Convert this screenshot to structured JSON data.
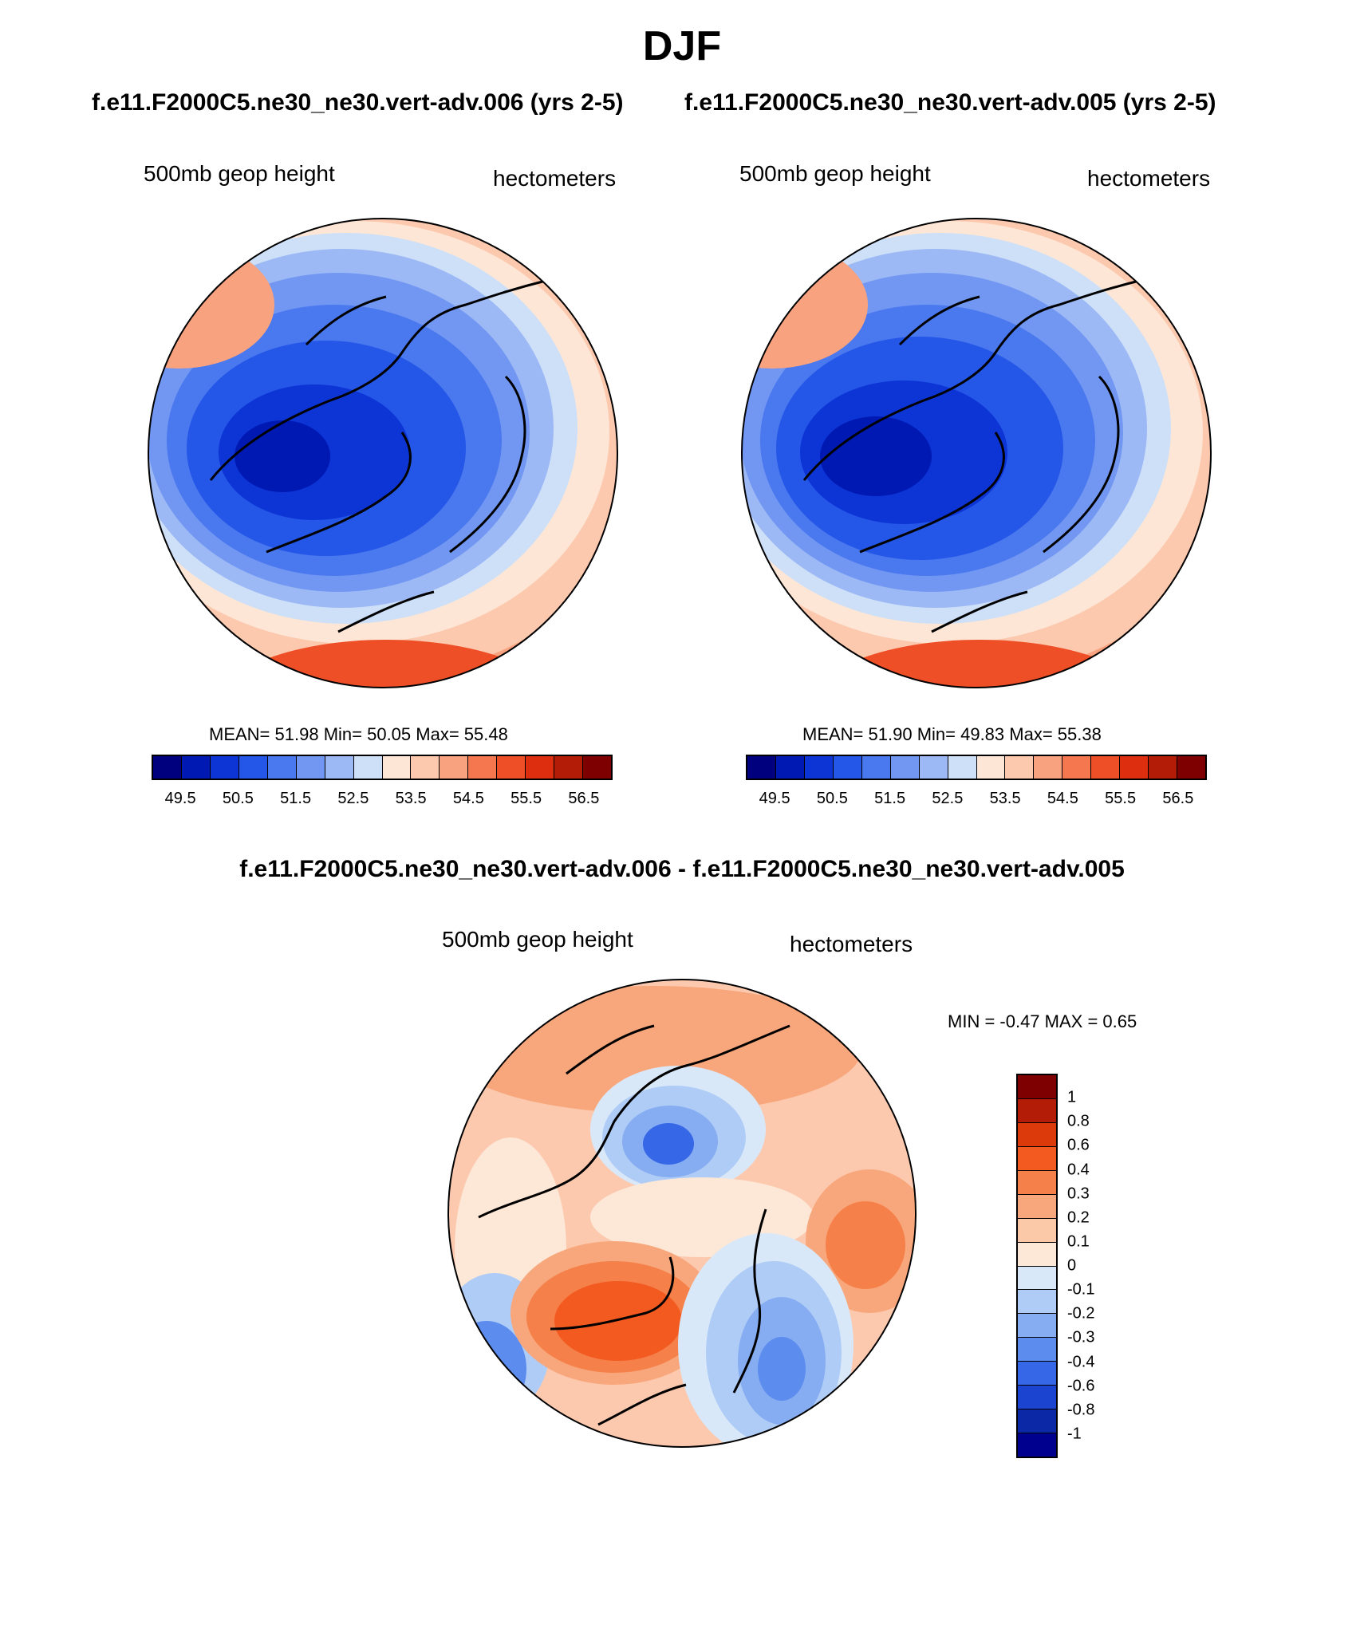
{
  "season": "DJF",
  "case_titles": {
    "left": "f.e11.F2000C5.ne30_ne30.vert-adv.006 (yrs 2-5)",
    "right": "f.e11.F2000C5.ne30_ne30.vert-adv.005 (yrs 2-5)",
    "difference": "f.e11.F2000C5.ne30_ne30.vert-adv.006 - f.e11.F2000C5.ne30_ne30.vert-adv.005"
  },
  "panels": {
    "left": {
      "variable": "500mb geop height",
      "units": "hectometers",
      "stats": "MEAN=  51.98  Min=  50.05  Max=  55.48"
    },
    "right": {
      "variable": "500mb geop height",
      "units": "hectometers",
      "stats": "MEAN=  51.90  Min=  49.83  Max=  55.38"
    },
    "diff": {
      "variable": "500mb geop height",
      "units": "hectometers",
      "stats": "MIN =  -0.47 MAX =   0.65"
    }
  },
  "colorbar_abs": {
    "colors": [
      "#00007f",
      "#0019b3",
      "#0d35d6",
      "#2456e8",
      "#4a78ee",
      "#7197f2",
      "#9cb8f5",
      "#cde0f8",
      "#fde6d6",
      "#fcc9ae",
      "#f9a27f",
      "#f5774f",
      "#ef4f27",
      "#dd2f10",
      "#b31d08",
      "#7f0000"
    ],
    "tick_labels": [
      "49.5",
      "50.5",
      "51.5",
      "52.5",
      "53.5",
      "54.5",
      "55.5",
      "56.5"
    ]
  },
  "colorbar_diff": {
    "colors": [
      "#7f0000",
      "#b31d08",
      "#dd3a0c",
      "#f25a20",
      "#f5804a",
      "#f8a77c",
      "#fbc9a8",
      "#fde7d6",
      "#d9e8f9",
      "#afccf6",
      "#86adf2",
      "#5c8cee",
      "#3567e6",
      "#1b45d0",
      "#0b28a6",
      "#00008f"
    ],
    "labels": [
      "1",
      "0.8",
      "0.6",
      "0.4",
      "0.3",
      "0.2",
      "0.1",
      "0",
      "-0.1",
      "-0.2",
      "-0.3",
      "-0.4",
      "-0.6",
      "-0.8",
      "-1"
    ]
  }
}
